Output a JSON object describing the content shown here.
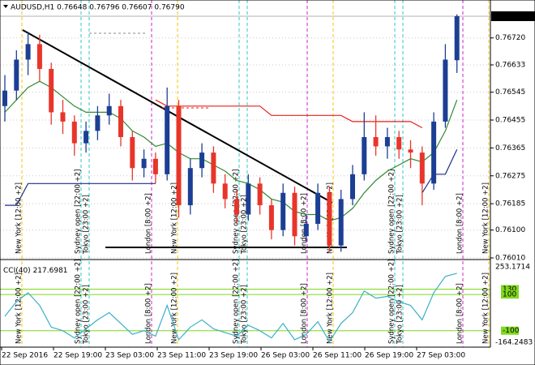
{
  "chart_data": {
    "type": "candlestick",
    "title": "AUDUSD,H1  0.76648 0.76796 0.76607 0.76790",
    "up_color": "#1c3f94",
    "down_color": "#e8352a",
    "ohlc": [
      [
        0.765,
        0.766,
        0.7645,
        0.7655
      ],
      [
        0.7655,
        0.7668,
        0.7652,
        0.7665
      ],
      [
        0.7665,
        0.7674,
        0.766,
        0.767
      ],
      [
        0.767,
        0.7673,
        0.7658,
        0.7662
      ],
      [
        0.7662,
        0.7664,
        0.7644,
        0.7648
      ],
      [
        0.7648,
        0.7652,
        0.7641,
        0.7645
      ],
      [
        0.7645,
        0.7647,
        0.7634,
        0.7638
      ],
      [
        0.7638,
        0.7645,
        0.7635,
        0.7642
      ],
      [
        0.7642,
        0.765,
        0.7639,
        0.7647
      ],
      [
        0.7647,
        0.7654,
        0.7644,
        0.765
      ],
      [
        0.765,
        0.7652,
        0.7637,
        0.764
      ],
      [
        0.764,
        0.7642,
        0.7626,
        0.763
      ],
      [
        0.763,
        0.7636,
        0.7627,
        0.7633
      ],
      [
        0.7633,
        0.7635,
        0.7625,
        0.7628
      ],
      [
        0.7628,
        0.7656,
        0.7626,
        0.765
      ],
      [
        0.765,
        0.7652,
        0.7614,
        0.7618
      ],
      [
        0.7618,
        0.7633,
        0.7615,
        0.763
      ],
      [
        0.763,
        0.7638,
        0.7627,
        0.7635
      ],
      [
        0.7635,
        0.7637,
        0.7622,
        0.7625
      ],
      [
        0.7625,
        0.7628,
        0.7617,
        0.762
      ],
      [
        0.762,
        0.7623,
        0.7612,
        0.7615
      ],
      [
        0.7615,
        0.7628,
        0.7613,
        0.7625
      ],
      [
        0.7625,
        0.7627,
        0.7615,
        0.7618
      ],
      [
        0.7618,
        0.762,
        0.7607,
        0.761
      ],
      [
        0.761,
        0.7625,
        0.7608,
        0.7622
      ],
      [
        0.7622,
        0.7624,
        0.7605,
        0.7608
      ],
      [
        0.7608,
        0.7615,
        0.7606,
        0.7612
      ],
      [
        0.7612,
        0.7625,
        0.761,
        0.7622
      ],
      [
        0.7622,
        0.7624,
        0.7603,
        0.7605
      ],
      [
        0.7605,
        0.7623,
        0.7603,
        0.762
      ],
      [
        0.762,
        0.7631,
        0.7618,
        0.7628
      ],
      [
        0.7628,
        0.7648,
        0.7626,
        0.764
      ],
      [
        0.764,
        0.7647,
        0.7634,
        0.7637
      ],
      [
        0.7637,
        0.7643,
        0.7633,
        0.764
      ],
      [
        0.764,
        0.7642,
        0.7633,
        0.7636
      ],
      [
        0.7636,
        0.7639,
        0.763,
        0.7635
      ],
      [
        0.7635,
        0.7637,
        0.7618,
        0.7625
      ],
      [
        0.7625,
        0.7648,
        0.7623,
        0.7645
      ],
      [
        0.7645,
        0.767,
        0.7643,
        0.7665
      ],
      [
        0.76648,
        0.76796,
        0.76607,
        0.7679
      ]
    ],
    "overlays": [
      {
        "color": "#2e8b2e",
        "values": [
          0.7648,
          0.7652,
          0.7656,
          0.7658,
          0.7656,
          0.7653,
          0.765,
          0.7648,
          0.7648,
          0.7648,
          0.7646,
          0.7642,
          0.764,
          0.7637,
          0.7638,
          0.7635,
          0.7633,
          0.7633,
          0.7631,
          0.7629,
          0.7626,
          0.7625,
          0.7623,
          0.762,
          0.7619,
          0.7616,
          0.7615,
          0.7615,
          0.7613,
          0.7614,
          0.7617,
          0.7622,
          0.7626,
          0.7629,
          0.7631,
          0.7633,
          0.7632,
          0.7635,
          0.7642,
          0.7652
        ]
      },
      {
        "color": "#e8201a",
        "values": [
          null,
          null,
          null,
          null,
          null,
          null,
          null,
          null,
          null,
          null,
          null,
          null,
          null,
          0.7652,
          0.765,
          0.765,
          0.765,
          0.765,
          0.765,
          0.765,
          0.765,
          0.765,
          0.765,
          0.7647,
          0.7647,
          0.7647,
          0.7647,
          0.7647,
          0.7647,
          0.7647,
          0.7645,
          0.7645,
          0.7645,
          0.7645,
          0.7645,
          0.7645,
          0.7643,
          null,
          null,
          null
        ]
      },
      {
        "color": "#1a2f8a",
        "values": [
          0.7618,
          0.7618,
          0.7625,
          0.7625,
          0.7625,
          0.7625,
          0.7625,
          0.7625,
          0.7625,
          0.7625,
          0.7625,
          0.7625,
          0.7625,
          0.7625,
          null,
          null,
          null,
          null,
          null,
          null,
          null,
          null,
          null,
          null,
          null,
          null,
          null,
          null,
          null,
          null,
          null,
          null,
          null,
          null,
          null,
          null,
          0.7622,
          0.7628,
          0.7628,
          0.7636
        ]
      }
    ],
    "ylim": [
      0.7601,
      0.7679
    ],
    "yticks": [
      {
        "value": 0.7672,
        "label": "0.76720"
      },
      0.76633,
      0.76545,
      0.76455,
      0.76365,
      0.76275,
      0.76185,
      {
        "value": 0.761,
        "label": "0.76100"
      },
      {
        "value": 0.7601,
        "label": "0.76010"
      }
    ],
    "last": {
      "value": 0.7679,
      "label": "0.76790"
    },
    "xlabels": [
      "22 Sep 2016",
      "22 Sep 19:00",
      "23 Sep 03:00",
      "23 Sep 11:00",
      "23 Sep 19:00",
      "26 Sep 03:00",
      "26 Sep 11:00",
      "26 Sep 19:00",
      "27 Sep 03:00"
    ],
    "sessions": [
      "New York [12:00 +2]",
      "Sydney open [22:00 +2]",
      "Tokyo [23:00 +2]",
      "London [8:00 +2]"
    ],
    "indicator": {
      "type": "line",
      "title": "CCI(40)",
      "color": "#3ab0c8",
      "values": [
        -20,
        60,
        110,
        40,
        -80,
        -100,
        -140,
        -90,
        -40,
        0,
        -60,
        -120,
        -100,
        -130,
        40,
        -150,
        -80,
        -40,
        -90,
        -110,
        -130,
        -70,
        -100,
        -140,
        -60,
        -150,
        -120,
        -50,
        -160,
        -60,
        0,
        120,
        80,
        90,
        60,
        40,
        -40,
        110,
        200,
        217.6981
      ],
      "ylim": [
        -191,
        280
      ],
      "yticks": [
        253.1714,
        130,
        100,
        -100,
        -164.2483
      ]
    }
  }
}
